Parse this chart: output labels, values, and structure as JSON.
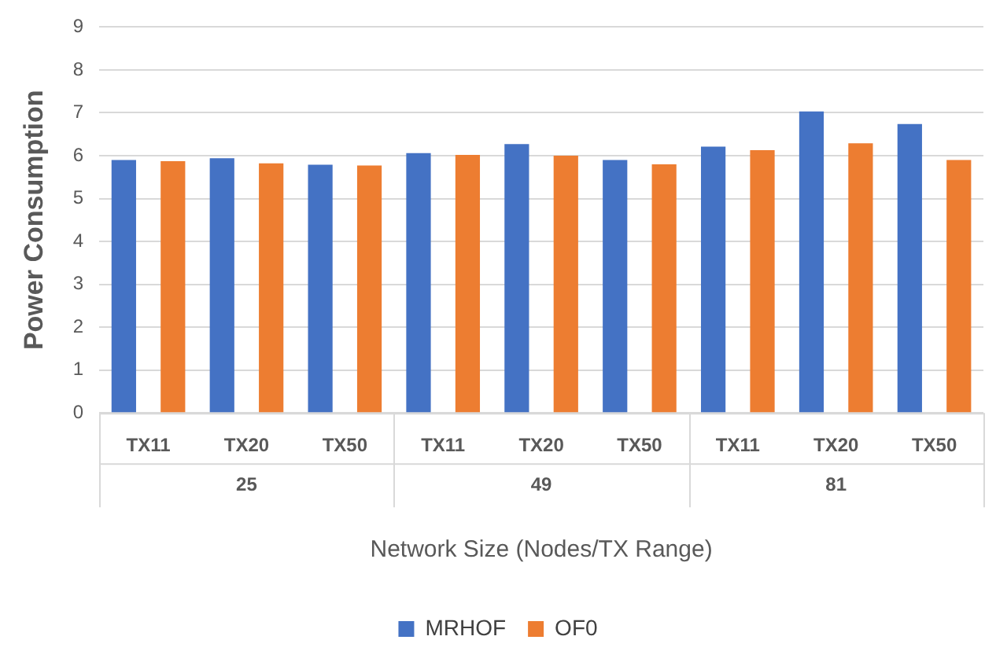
{
  "chart_data": {
    "type": "bar",
    "xlabel": "Network Size (Nodes/TX Range)",
    "ylabel": "Power Consumption",
    "categories": [
      "TX11",
      "TX20",
      "TX50",
      "TX11",
      "TX20",
      "TX50",
      "TX11",
      "TX20",
      "TX50"
    ],
    "annotations": [
      "25",
      "49",
      "81"
    ],
    "series": [
      {
        "name": "MRHOF",
        "color": "#4472c4",
        "values": [
          5.9,
          5.94,
          5.79,
          6.06,
          6.27,
          5.9,
          6.21,
          7.03,
          6.74
        ]
      },
      {
        "name": "OF0",
        "color": "#ed7d31",
        "values": [
          5.87,
          5.82,
          5.77,
          6.02,
          6.0,
          5.8,
          6.13,
          6.29,
          5.9
        ]
      }
    ],
    "ylim": [
      0,
      9
    ],
    "yticks": [
      0,
      1,
      2,
      3,
      4,
      5,
      6,
      7,
      8,
      9
    ],
    "grid": "y",
    "legend": "bottom"
  }
}
